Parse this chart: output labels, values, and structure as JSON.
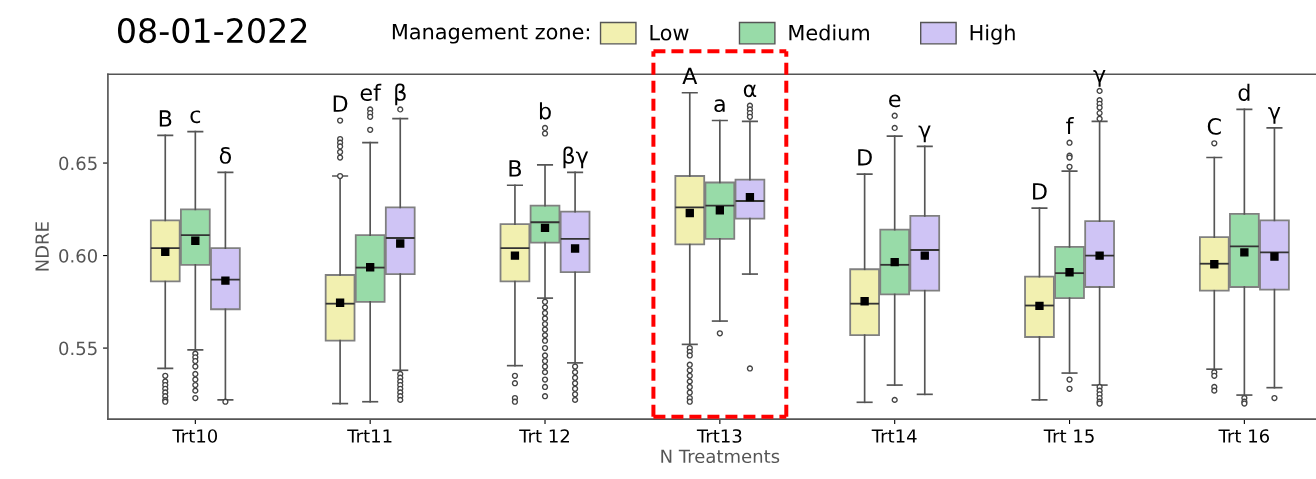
{
  "chart_data": {
    "type": "box",
    "title": "08-01-2022",
    "xlabel": "N Treatments",
    "ylabel": "NDRE",
    "legend_title": "Management zone:",
    "legend": "top",
    "categories": [
      "Trt10",
      "Trt11",
      "Trt 12",
      "Trt13",
      "Trt14",
      "Trt 15",
      "Trt 16"
    ],
    "ylim": [
      0.5116,
      0.698
    ],
    "yticks": [
      {
        "value": 0.55,
        "label": "0.55"
      },
      {
        "value": 0.6,
        "label": "0.60"
      },
      {
        "value": 0.65,
        "label": "0.65"
      }
    ],
    "grid": false,
    "marker": "square",
    "series": [
      {
        "name": "Low",
        "color": "#f2f0b0",
        "boxes": [
          {
            "low": 0.539,
            "q1": 0.586,
            "median": 0.604,
            "q3": 0.619,
            "high": 0.665,
            "mean": 0.602,
            "outliers": [
              0.535,
              0.532,
              0.53,
              0.528,
              0.526,
              0.524,
              0.522,
              0.521
            ]
          },
          {
            "low": 0.52,
            "q1": 0.554,
            "median": 0.574,
            "q3": 0.5895,
            "high": 0.643,
            "mean": 0.5745,
            "outliers": [
              0.673,
              0.663,
              0.661,
              0.659,
              0.656,
              0.653,
              0.643
            ]
          },
          {
            "low": 0.5405,
            "q1": 0.586,
            "median": 0.604,
            "q3": 0.617,
            "high": 0.638,
            "mean": 0.6,
            "outliers": [
              0.535,
              0.531,
              0.523,
              0.521
            ]
          },
          {
            "low": 0.552,
            "q1": 0.606,
            "median": 0.626,
            "q3": 0.643,
            "high": 0.688,
            "mean": 0.623,
            "outliers": [
              0.55,
              0.548,
              0.546,
              0.541,
              0.538,
              0.535,
              0.532,
              0.529,
              0.526,
              0.523,
              0.521
            ]
          },
          {
            "low": 0.5207,
            "q1": 0.557,
            "median": 0.574,
            "q3": 0.5926,
            "high": 0.644,
            "mean": 0.5753
          },
          {
            "low": 0.522,
            "q1": 0.556,
            "median": 0.573,
            "q3": 0.5886,
            "high": 0.6256,
            "mean": 0.5728
          },
          {
            "low": 0.5386,
            "q1": 0.581,
            "median": 0.5956,
            "q3": 0.61,
            "high": 0.653,
            "mean": 0.5953,
            "outliers": [
              0.6607,
              0.537,
              0.535,
              0.529,
              0.527
            ]
          }
        ]
      },
      {
        "name": "Medium",
        "color": "#98dba8",
        "boxes": [
          {
            "low": 0.549,
            "q1": 0.595,
            "median": 0.611,
            "q3": 0.625,
            "high": 0.667,
            "mean": 0.608,
            "outliers": [
              0.547,
              0.545,
              0.543,
              0.54,
              0.536,
              0.533,
              0.53,
              0.527,
              0.523
            ]
          },
          {
            "low": 0.521,
            "q1": 0.575,
            "median": 0.5935,
            "q3": 0.611,
            "high": 0.661,
            "mean": 0.5937,
            "outliers": [
              0.679,
              0.677,
              0.675,
              0.668
            ]
          },
          {
            "low": 0.577,
            "q1": 0.607,
            "median": 0.618,
            "q3": 0.627,
            "high": 0.649,
            "mean": 0.615,
            "outliers": [
              0.669,
              0.666,
              0.575,
              0.572,
              0.569,
              0.566,
              0.563,
              0.56,
              0.557,
              0.554,
              0.55,
              0.546,
              0.543,
              0.54,
              0.537,
              0.533,
              0.529,
              0.524
            ]
          },
          {
            "low": 0.5646,
            "q1": 0.609,
            "median": 0.627,
            "q3": 0.6395,
            "high": 0.673,
            "mean": 0.6245,
            "outliers": [
              0.558
            ]
          },
          {
            "low": 0.53,
            "q1": 0.579,
            "median": 0.595,
            "q3": 0.614,
            "high": 0.6646,
            "mean": 0.5965,
            "outliers": [
              0.6756,
              0.669,
              0.522
            ]
          },
          {
            "low": 0.5365,
            "q1": 0.577,
            "median": 0.5905,
            "q3": 0.6047,
            "high": 0.6456,
            "mean": 0.591,
            "outliers": [
              0.661,
              0.654,
              0.653,
              0.648,
              0.533,
              0.528
            ]
          },
          {
            "low": 0.5246,
            "q1": 0.583,
            "median": 0.605,
            "q3": 0.6225,
            "high": 0.679,
            "mean": 0.6017,
            "outliers": [
              0.523,
              0.521,
              0.52
            ]
          }
        ]
      },
      {
        "name": "High",
        "color": "#cfc4f5",
        "boxes": [
          {
            "low": 0.522,
            "q1": 0.571,
            "median": 0.587,
            "q3": 0.604,
            "high": 0.645,
            "mean": 0.5865,
            "outliers": [
              0.521
            ]
          },
          {
            "low": 0.538,
            "q1": 0.59,
            "median": 0.6095,
            "q3": 0.626,
            "high": 0.674,
            "mean": 0.6065,
            "outliers": [
              0.679,
              0.536,
              0.534,
              0.532,
              0.53,
              0.528,
              0.526,
              0.524,
              0.522
            ]
          },
          {
            "low": 0.542,
            "q1": 0.591,
            "median": 0.609,
            "q3": 0.6237,
            "high": 0.645,
            "mean": 0.6038,
            "outliers": [
              0.54,
              0.537,
              0.534,
              0.531,
              0.528,
              0.525,
              0.522
            ]
          },
          {
            "low": 0.59,
            "q1": 0.62,
            "median": 0.6295,
            "q3": 0.641,
            "high": 0.6725,
            "mean": 0.6316,
            "outliers": [
              0.681,
              0.679,
              0.677,
              0.675,
              0.539
            ]
          },
          {
            "low": 0.525,
            "q1": 0.581,
            "median": 0.603,
            "q3": 0.6214,
            "high": 0.659,
            "mean": 0.6
          },
          {
            "low": 0.53,
            "q1": 0.583,
            "median": 0.6,
            "q3": 0.6186,
            "high": 0.6725,
            "mean": 0.6,
            "outliers": [
              0.689,
              0.684,
              0.682,
              0.68,
              0.677,
              0.674,
              0.529,
              0.527,
              0.525,
              0.523,
              0.521,
              0.52
            ]
          },
          {
            "low": 0.5286,
            "q1": 0.5816,
            "median": 0.6017,
            "q3": 0.619,
            "high": 0.669,
            "mean": 0.5995,
            "outliers": [
              0.523
            ]
          }
        ]
      }
    ],
    "annotations": [
      "B",
      "c",
      "δ",
      "D",
      "ef",
      "β",
      "B",
      "b",
      "βγ",
      "A",
      "a",
      "α",
      "D",
      "e",
      "γ",
      "D",
      "f",
      "γ",
      "C",
      "d",
      "γ"
    ]
  }
}
